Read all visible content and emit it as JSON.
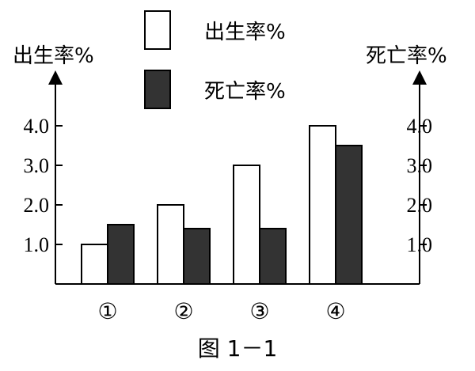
{
  "chart_data": {
    "type": "bar",
    "categories": [
      "①",
      "②",
      "③",
      "④"
    ],
    "series": [
      {
        "name": "出生率%",
        "values": [
          1.0,
          2.0,
          3.0,
          4.0
        ]
      },
      {
        "name": "死亡率%",
        "values": [
          1.5,
          1.4,
          1.4,
          3.5
        ]
      }
    ],
    "ylabel_left": "出生率%",
    "ylabel_right": "死亡率%",
    "y_ticks": [
      "1.0",
      "2.0",
      "3.0",
      "4.0"
    ],
    "ylim": [
      0,
      5.0
    ],
    "grid": false,
    "legend": "top-center",
    "colors": {
      "birth": "#ffffff",
      "death": "#333333",
      "axis": "#000000"
    }
  },
  "caption": "图 1－1"
}
